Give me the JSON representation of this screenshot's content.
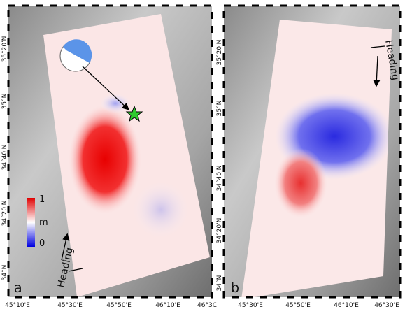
{
  "panels": [
    {
      "letter": "a",
      "x_labels": [
        "45°10'E",
        "45°30'E",
        "45°50'E",
        "46°10'E",
        "46°3C"
      ],
      "y_labels": [
        "35°20'N",
        "35°N",
        "34°40'N",
        "34°20'N",
        "34°N"
      ],
      "heading": "Heading",
      "colorbar": {
        "max": 1,
        "unit": "m",
        "min": 0
      }
    },
    {
      "letter": "b",
      "x_labels": [
        "45°30'E",
        "45°50'E",
        "46°10'E",
        "46°30'E"
      ],
      "y_labels": [
        "35°20'N",
        "35°N",
        "34°40'N",
        "34°20'N",
        "34°N"
      ],
      "heading": "Heading"
    }
  ]
}
